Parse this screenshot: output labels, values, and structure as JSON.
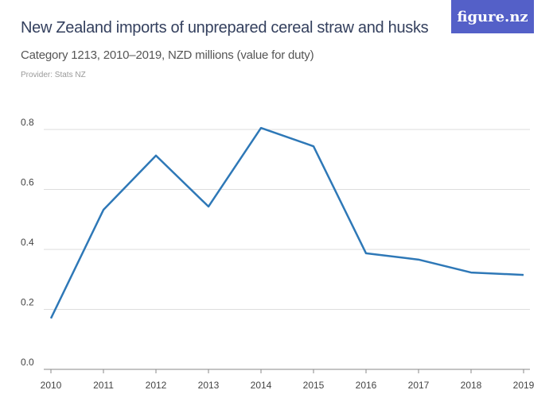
{
  "header": {
    "title": "New Zealand imports of unprepared cereal straw and husks",
    "subtitle": "Category 1213, 2010–2019, NZD millions (value for duty)",
    "provider": "Provider: Stats NZ",
    "logo": "figure.nz",
    "logo_color": "#5460c8"
  },
  "chart_data": {
    "type": "line",
    "title": "New Zealand imports of unprepared cereal straw and husks",
    "subtitle": "Category 1213, 2010–2019, NZD millions (value for duty)",
    "x": [
      "2010",
      "2011",
      "2012",
      "2013",
      "2014",
      "2015",
      "2016",
      "2017",
      "2018",
      "2019"
    ],
    "series": [
      {
        "values": [
          0.17,
          0.532,
          0.713,
          0.543,
          0.805,
          0.744,
          0.387,
          0.366,
          0.323,
          0.315
        ],
        "color": "#2e78b7"
      }
    ],
    "yticks": [
      "0.0",
      "0.2",
      "0.4",
      "0.6",
      "0.8"
    ],
    "ylim": [
      0,
      0.8
    ],
    "grid": true
  }
}
